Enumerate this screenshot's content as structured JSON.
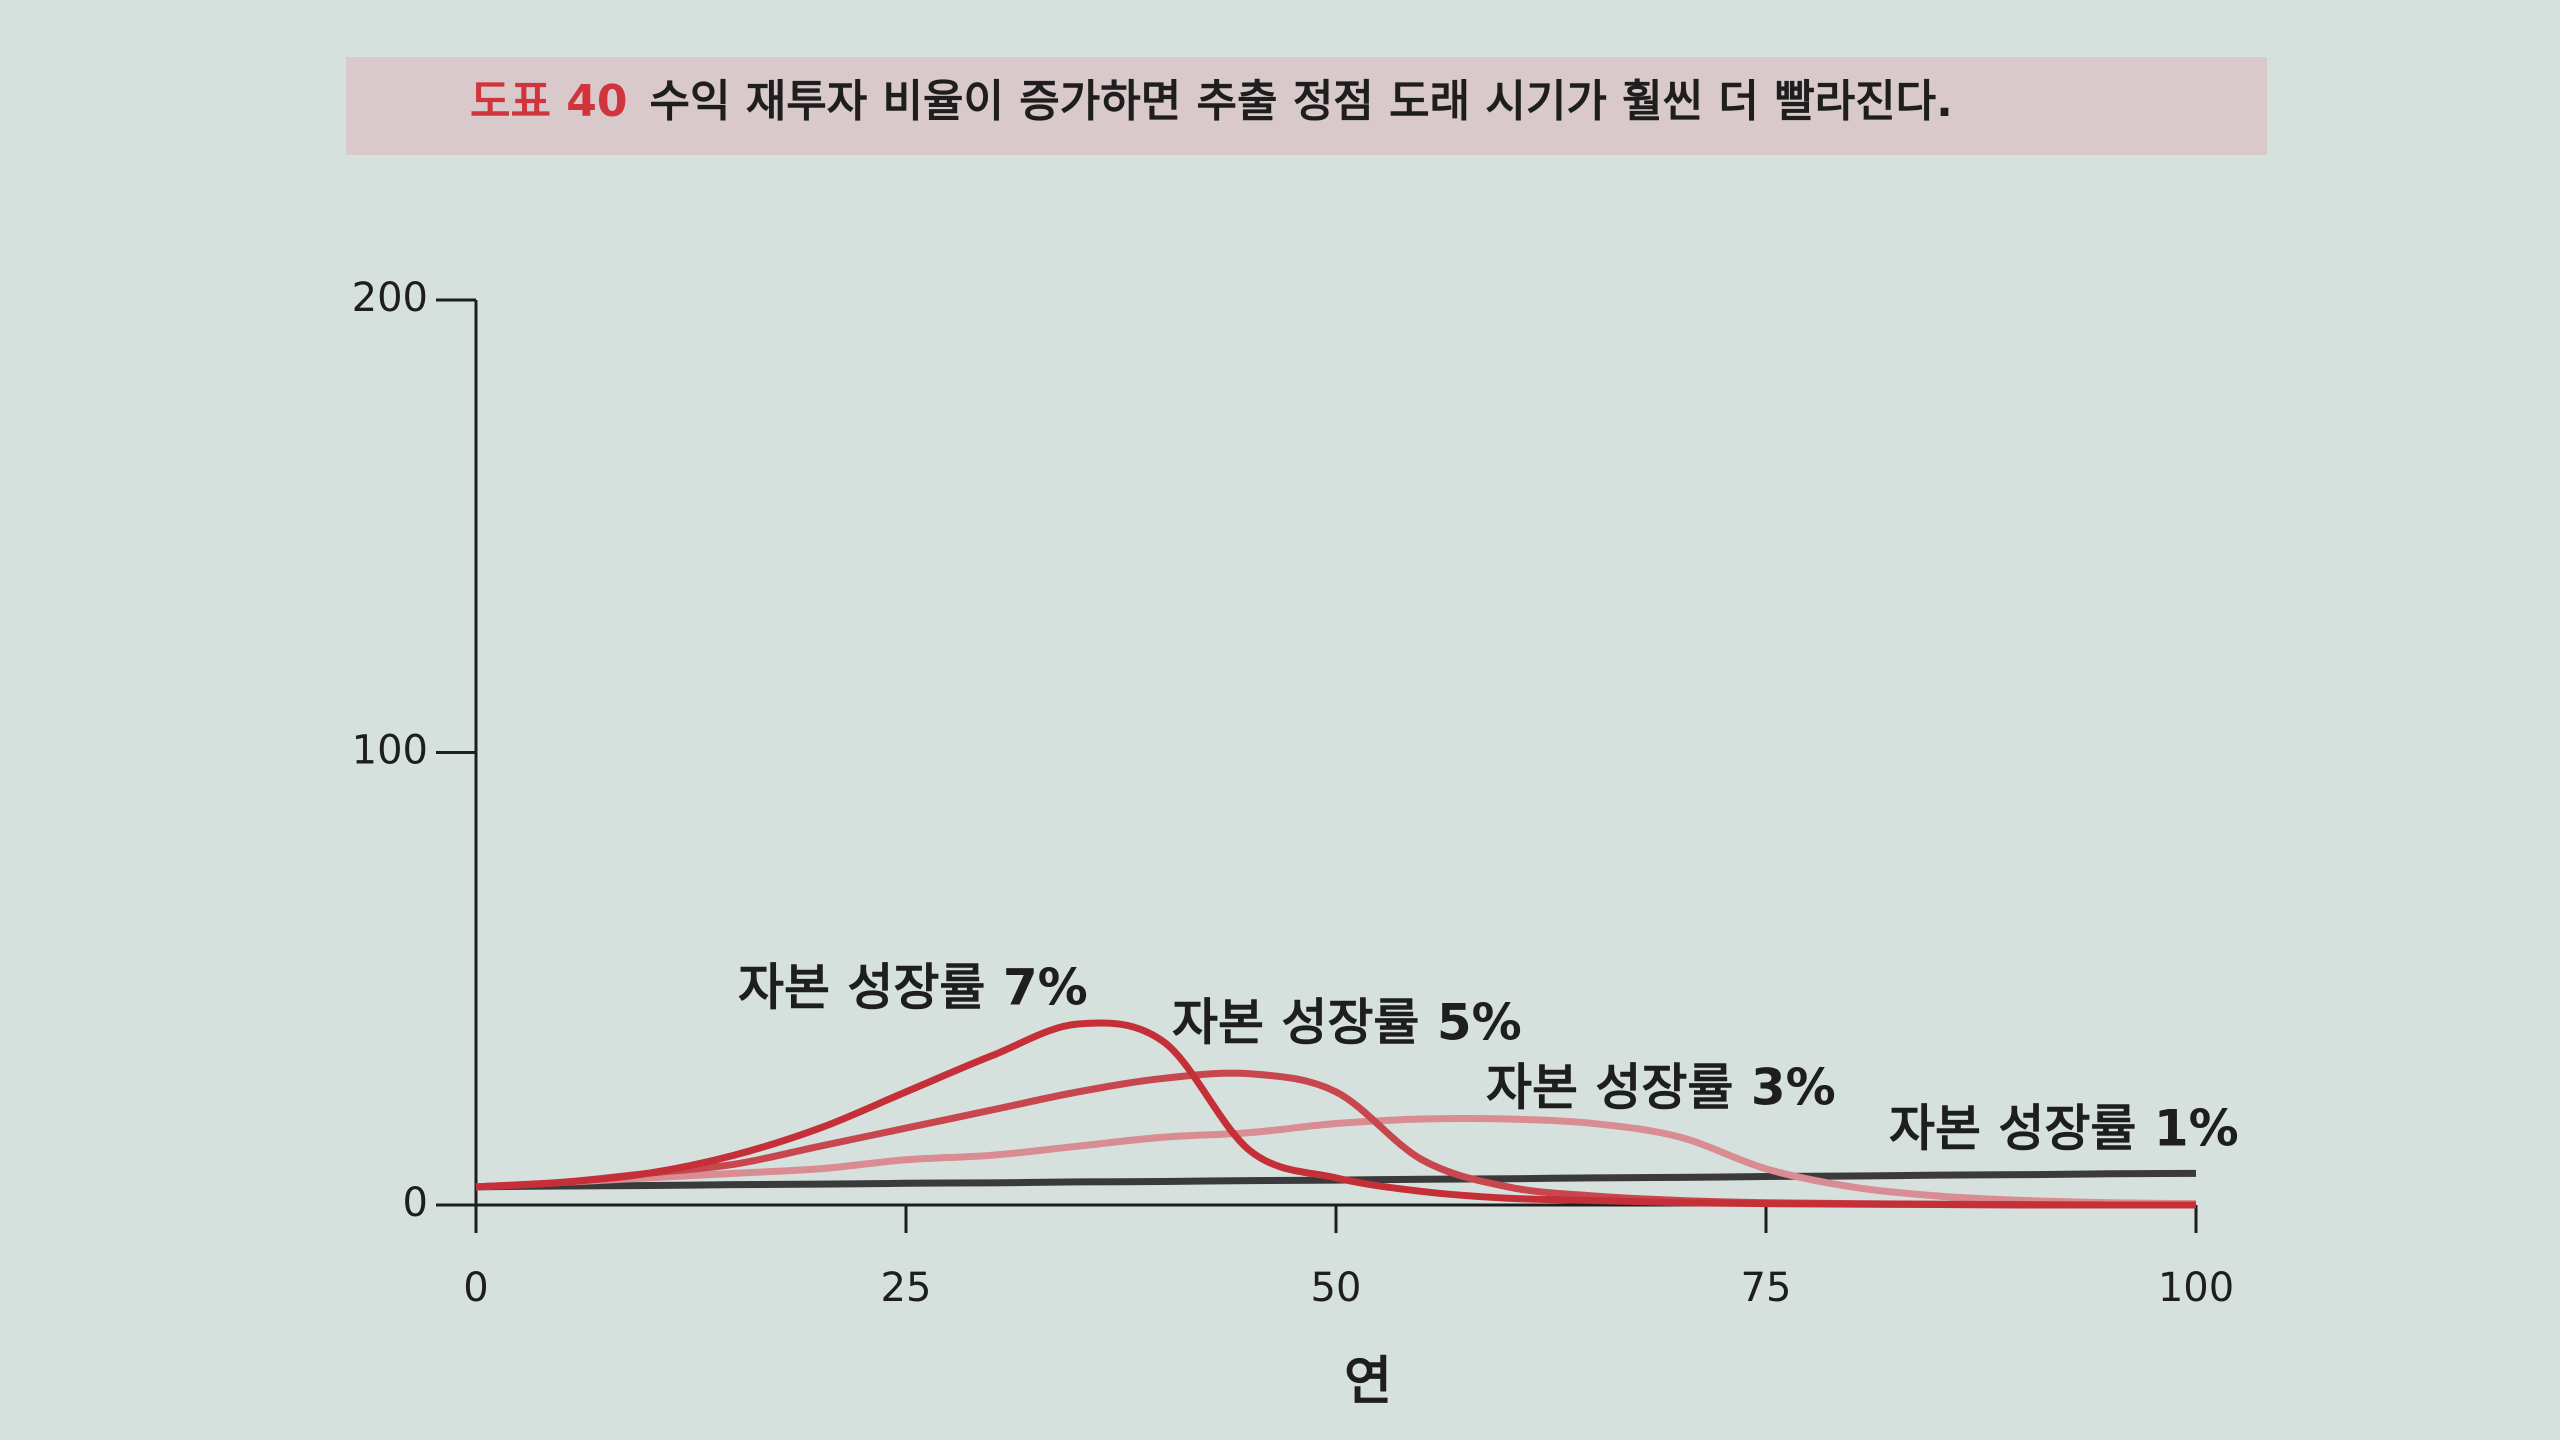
{
  "chart_data": {
    "type": "line",
    "figure_number": "도표 40",
    "title": "수익 재투자 비율이 증가하면 추출 정점 도래 시기가 훨씬 더 빨라진다.",
    "xlabel": "연",
    "x": [
      0,
      5,
      10,
      15,
      20,
      25,
      30,
      35,
      40,
      45,
      50,
      55,
      60,
      65,
      70,
      75,
      80,
      85,
      90,
      95,
      100
    ],
    "xlim": [
      0,
      100
    ],
    "xticks": [
      0,
      25,
      50,
      75,
      100
    ],
    "ylim": [
      0,
      200
    ],
    "yticks": [
      0,
      100,
      200
    ],
    "series": [
      {
        "name": "자본 성장률 7%",
        "color": "#c42f38",
        "values": [
          4,
          5,
          7,
          11,
          17,
          25,
          33,
          40,
          36,
          12,
          6,
          3,
          1.5,
          1,
          0.5,
          0.3,
          0.2,
          0.1,
          0,
          0,
          0
        ]
      },
      {
        "name": "자본 성장률 5%",
        "color": "#c8474e",
        "values": [
          4,
          5,
          7,
          9,
          13,
          17,
          21,
          25,
          28,
          29,
          25,
          10,
          4,
          2,
          1,
          0.5,
          0.3,
          0.2,
          0.1,
          0,
          0
        ]
      },
      {
        "name": "자본 성장률 3%",
        "color": "#d98c91",
        "values": [
          4,
          5,
          6,
          7,
          8,
          10,
          11,
          13,
          15,
          16,
          18,
          19,
          19,
          18,
          15,
          8,
          4,
          2,
          1,
          0.5,
          0.3
        ]
      },
      {
        "name": "자본 성장률 1%",
        "color": "#3a3a3a",
        "values": [
          4,
          4.2,
          4.3,
          4.5,
          4.6,
          4.8,
          4.9,
          5.1,
          5.2,
          5.4,
          5.5,
          5.7,
          5.8,
          6,
          6.1,
          6.3,
          6.4,
          6.6,
          6.7,
          6.9,
          7
        ]
      }
    ]
  }
}
